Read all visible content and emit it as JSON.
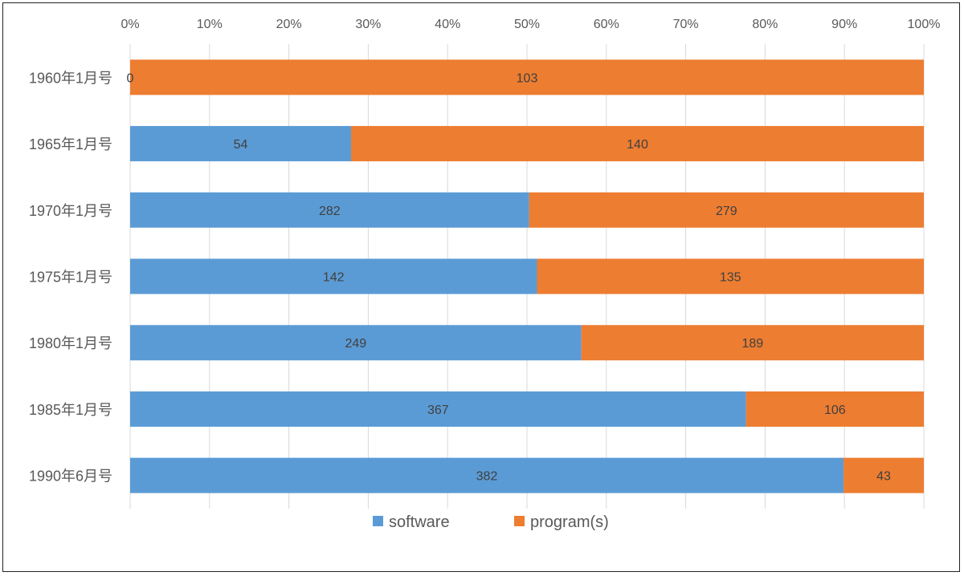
{
  "chart_data": {
    "type": "bar",
    "orientation": "horizontal",
    "stacked": "percent",
    "categories": [
      "1960年1月号",
      "1965年1月号",
      "1970年1月号",
      "1975年1月号",
      "1980年1月号",
      "1985年1月号",
      "1990年6月号"
    ],
    "series": [
      {
        "name": "software",
        "values": [
          0,
          54,
          282,
          142,
          249,
          367,
          382
        ],
        "color": "#5B9BD5"
      },
      {
        "name": "program(s)",
        "values": [
          103,
          140,
          279,
          135,
          189,
          106,
          43
        ],
        "color": "#ED7D31"
      }
    ],
    "x_ticks": [
      "0%",
      "10%",
      "20%",
      "30%",
      "40%",
      "50%",
      "60%",
      "70%",
      "80%",
      "90%",
      "100%"
    ],
    "xlim": [
      0,
      100
    ],
    "grid": true,
    "legend_position": "bottom",
    "title": "",
    "xlabel": "",
    "ylabel": ""
  }
}
